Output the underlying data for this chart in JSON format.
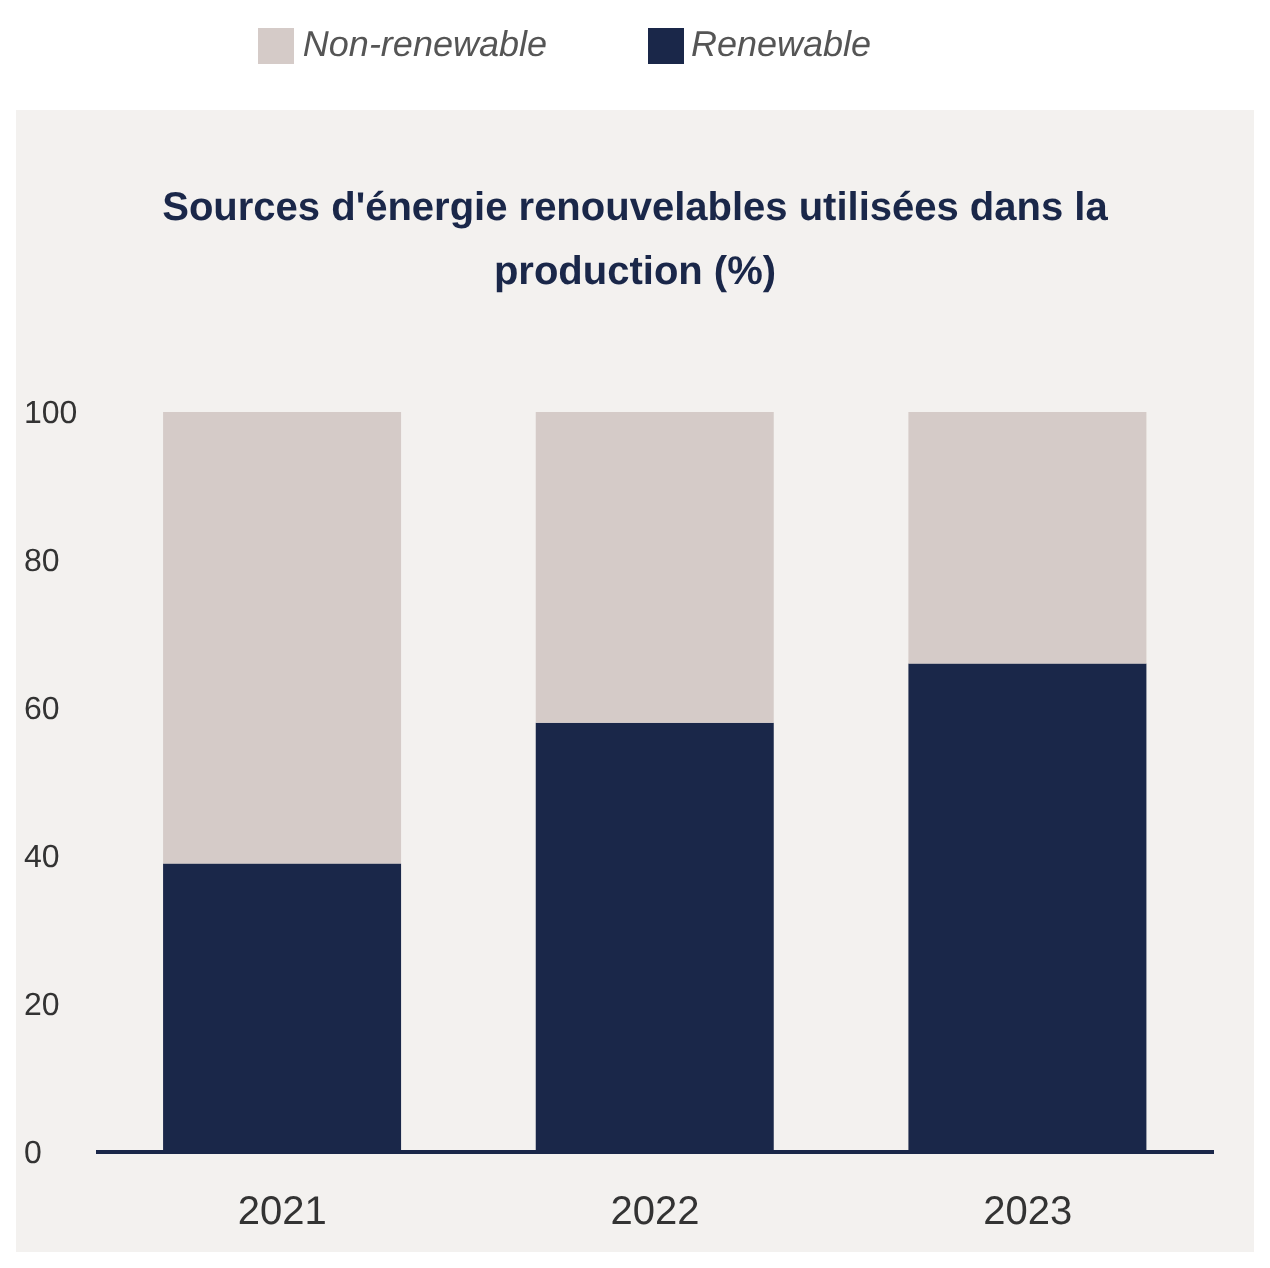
{
  "chart_data": {
    "type": "bar",
    "title": "Sources d'énergie renouvelables utilisées dans la production (%)",
    "categories": [
      "2021",
      "2022",
      "2023"
    ],
    "stacked": true,
    "series": [
      {
        "name": "Renewable",
        "color": "#1a2749",
        "values": [
          39,
          58,
          66
        ]
      },
      {
        "name": "Non-renewable",
        "color": "#d5cbc8",
        "values": [
          61,
          42,
          34
        ]
      }
    ],
    "ylim": [
      0,
      100
    ],
    "yticks": [
      0,
      20,
      40,
      60,
      80,
      100
    ],
    "grid": false,
    "legend": "top"
  }
}
